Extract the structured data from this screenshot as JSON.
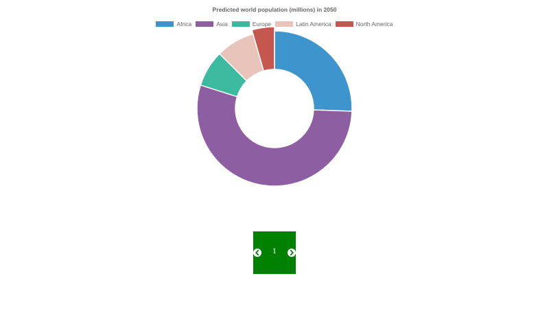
{
  "chart_data": {
    "type": "doughnut",
    "title": "Predicted world population (millions) in 2050",
    "categories": [
      "Africa",
      "Asia",
      "Europe",
      "Latin America",
      "North America"
    ],
    "values": [
      2478,
      5267,
      734,
      784,
      433
    ],
    "colors": [
      "#3e95cd",
      "#8e5ea2",
      "#3cba9f",
      "#e8c3b9",
      "#c45850"
    ],
    "legend": "top",
    "hovered_slice": "North America"
  },
  "pager": {
    "page": "1",
    "prev_icon": "chevron-left-circle-icon",
    "next_icon": "chevron-right-circle-icon",
    "background": "#008000"
  }
}
